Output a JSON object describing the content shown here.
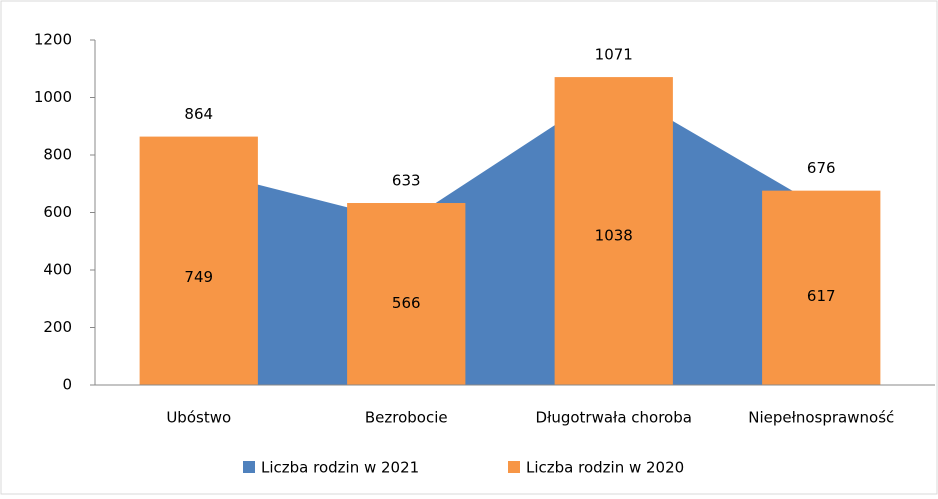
{
  "chart_data": {
    "type": "bar",
    "categories": [
      "Ubóstwo",
      "Bezrobocie",
      "Długotrwała choroba",
      "Niepełnosprawność"
    ],
    "series": [
      {
        "name": "Liczba rodzin w 2021",
        "type": "area",
        "color": "#4f81bd",
        "values": [
          749,
          566,
          1038,
          617
        ]
      },
      {
        "name": "Liczba rodzin w 2020",
        "type": "bar",
        "color": "#f79646",
        "values": [
          864,
          633,
          1071,
          676
        ]
      }
    ],
    "ylim": [
      0,
      1200
    ],
    "yticks": [
      0,
      200,
      400,
      600,
      800,
      1000,
      1200
    ],
    "grid": false,
    "legend": "bottom"
  }
}
